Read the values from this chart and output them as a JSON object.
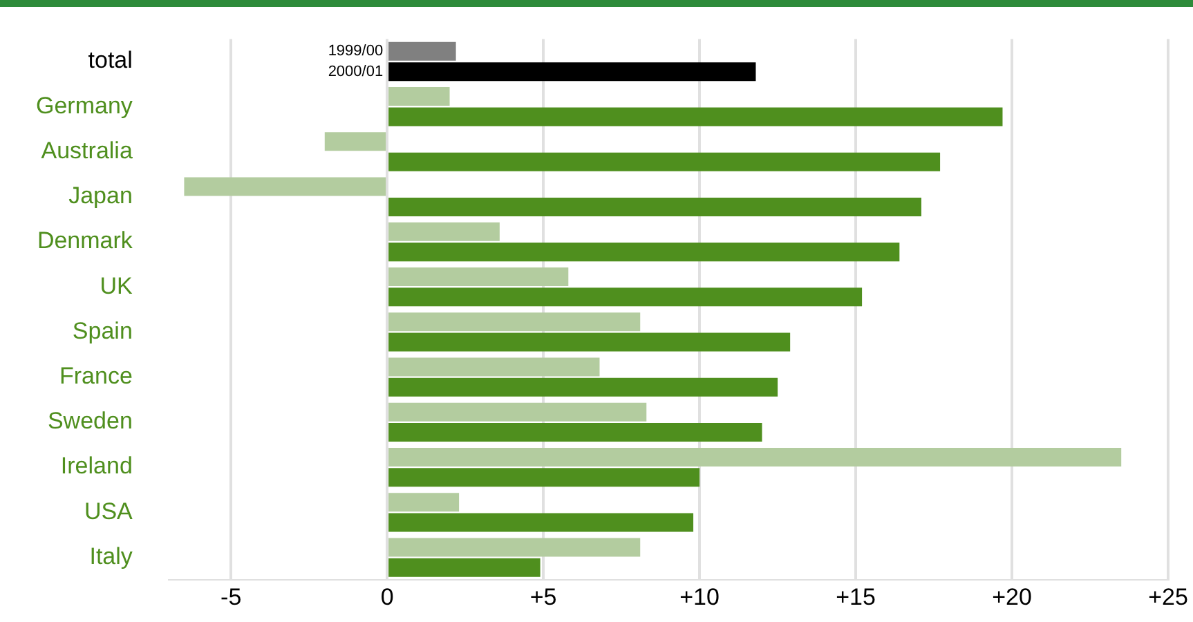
{
  "chart_data": {
    "type": "bar",
    "orientation": "horizontal",
    "categories": [
      "total",
      "Germany",
      "Australia",
      "Japan",
      "Denmark",
      "UK",
      "Spain",
      "France",
      "Sweden",
      "Ireland",
      "USA",
      "Italy"
    ],
    "series": [
      {
        "name": "1999/00",
        "colors": [
          "#808080",
          "#b3cc9f",
          "#b3cc9f",
          "#b3cc9f",
          "#b3cc9f",
          "#b3cc9f",
          "#b3cc9f",
          "#b3cc9f",
          "#b3cc9f",
          "#b3cc9f",
          "#b3cc9f",
          "#b3cc9f"
        ],
        "values": [
          2.2,
          2.0,
          -2.0,
          -6.5,
          3.6,
          5.8,
          8.1,
          6.8,
          8.3,
          23.5,
          2.3,
          8.1
        ]
      },
      {
        "name": "2000/01",
        "colors": [
          "#000000",
          "#4f8f1e",
          "#4f8f1e",
          "#4f8f1e",
          "#4f8f1e",
          "#4f8f1e",
          "#4f8f1e",
          "#4f8f1e",
          "#4f8f1e",
          "#4f8f1e",
          "#4f8f1e",
          "#4f8f1e"
        ],
        "values": [
          11.8,
          19.7,
          17.7,
          17.1,
          16.4,
          15.2,
          12.9,
          12.5,
          12.0,
          10.0,
          9.8,
          4.9
        ]
      }
    ],
    "xlim": [
      -7,
      25
    ],
    "xticks": [
      -5,
      0,
      {
        "value": 5,
        "label": "+5"
      },
      {
        "value": 10,
        "label": "+10"
      },
      {
        "value": 15,
        "label": "+15"
      },
      {
        "value": 20,
        "label": "+20"
      },
      {
        "value": 25,
        "label": "+25"
      }
    ],
    "grid": "x",
    "legend": false
  }
}
